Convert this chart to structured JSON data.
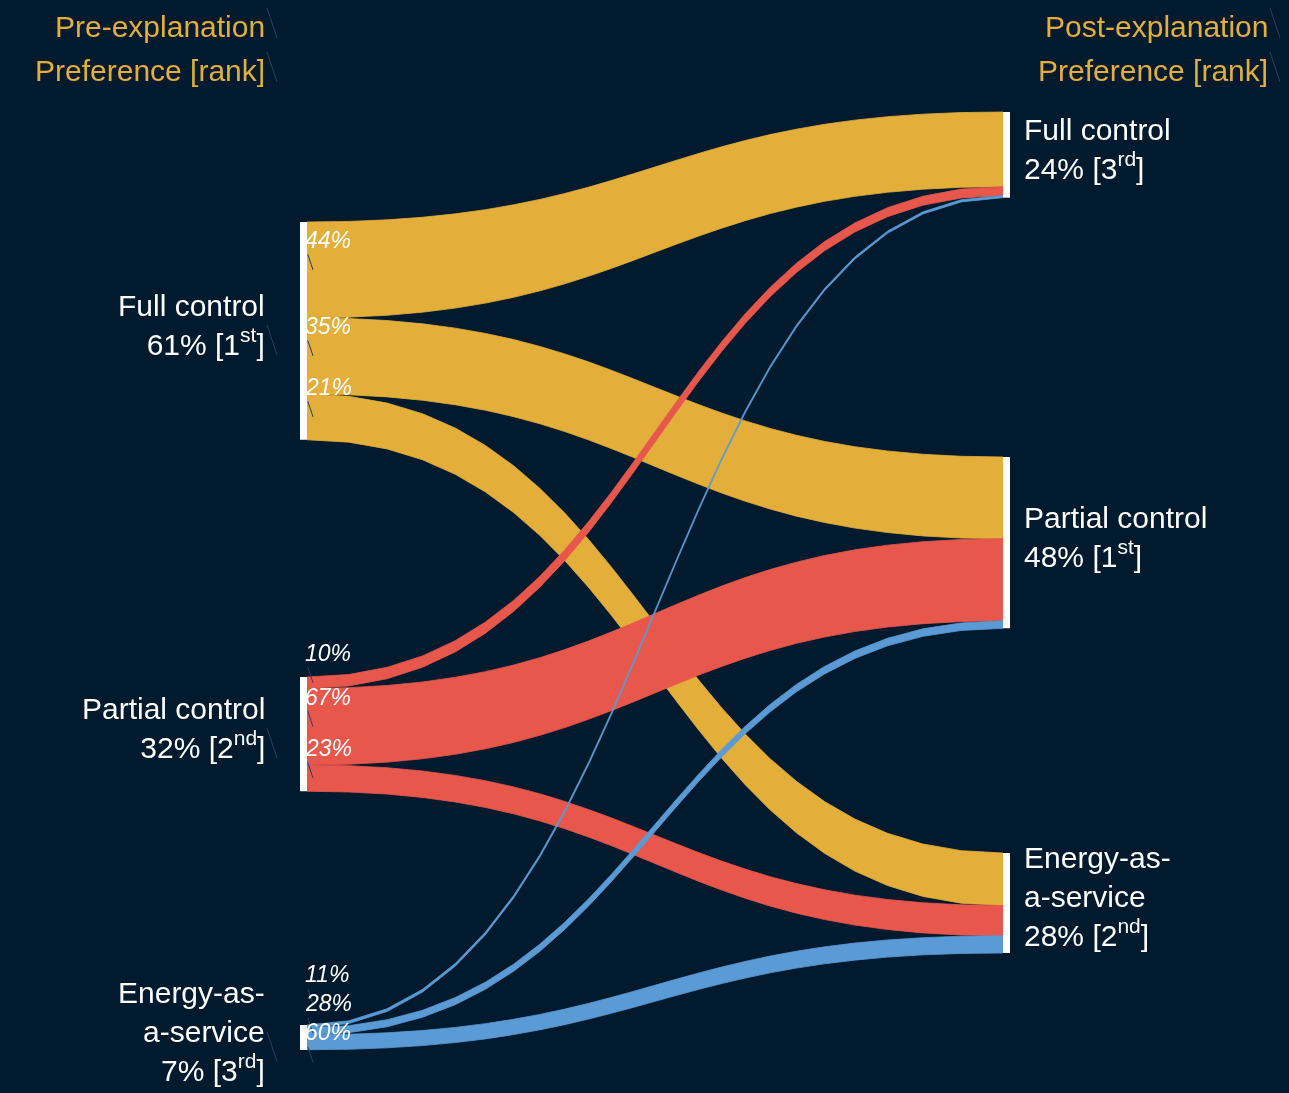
{
  "chart_data": {
    "type": "other",
    "annotations": [
      "Pre-explanation",
      "Preference [rank]",
      "Post-explanation",
      "Preference [rank]"
    ],
    "categories": [
      "Full control",
      "Partial control",
      "Energy-as-a-service"
    ],
    "colors": [
      "#e3ae3a",
      "#e8574c",
      "#5b9bd5"
    ],
    "series": [
      {
        "values": [
          61,
          32,
          7
        ],
        "value_labels": [
          "61% [1$^{st}$]",
          "32% [2$^{nd}$]",
          "7% [3$^{rd}$]"
        ]
      },
      {
        "values": [
          24,
          48,
          28
        ],
        "value_labels": [
          "24% [3$^{rd}$]",
          "48% [1$^{st}$]",
          "28% [2$^{nd}$]"
        ]
      }
    ],
    "cell_labels": [
      [
        "44%",
        "35%",
        "21%"
      ],
      [
        "10%",
        "67%",
        "23%"
      ],
      [
        "11%",
        "28%",
        "60%"
      ]
    ],
    "data_labels": true
  }
}
